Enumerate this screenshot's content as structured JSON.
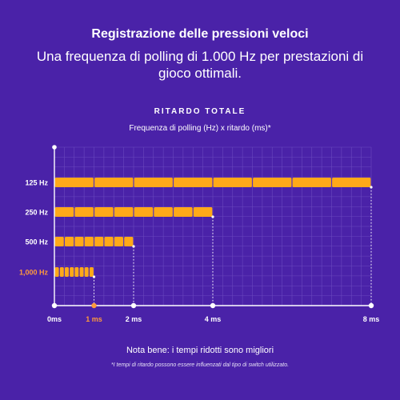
{
  "header": {
    "title": "Registrazione delle pressioni veloci",
    "subtitle": "Una frequenza di polling di 1.000 Hz per prestazioni di gioco ottimali."
  },
  "footer": {
    "note": "Nota bene: i tempi ridotti sono migliori",
    "footnote": "*I tempi di ritardo possono essere influenzati dal tipo di switch utilizzato."
  },
  "colors": {
    "background": "#4a22a8",
    "bar": "#ffa919",
    "highlight": "#ff9a3c",
    "text": "#ffffff",
    "grid": "#6a48be"
  },
  "chart_data": {
    "type": "bar",
    "orientation": "horizontal",
    "title": "RITARDO TOTALE",
    "subtitle": "Frequenza di polling (Hz) x ritardo (ms)*",
    "categories": [
      "125 Hz",
      "250 Hz",
      "500 Hz",
      "1,000 Hz"
    ],
    "highlight_category": "1,000 Hz",
    "values": [
      8,
      4,
      2,
      1
    ],
    "segments": [
      8,
      8,
      8,
      8
    ],
    "xlim": [
      0,
      8
    ],
    "xticks": [
      {
        "value": 0,
        "label": "0ms",
        "highlight": false
      },
      {
        "value": 1,
        "label": "1 ms",
        "highlight": true
      },
      {
        "value": 2,
        "label": "2 ms",
        "highlight": false
      },
      {
        "value": 4,
        "label": "4 ms",
        "highlight": false
      },
      {
        "value": 8,
        "label": "8 ms",
        "highlight": false
      }
    ],
    "grid": true,
    "unit": "ms"
  }
}
